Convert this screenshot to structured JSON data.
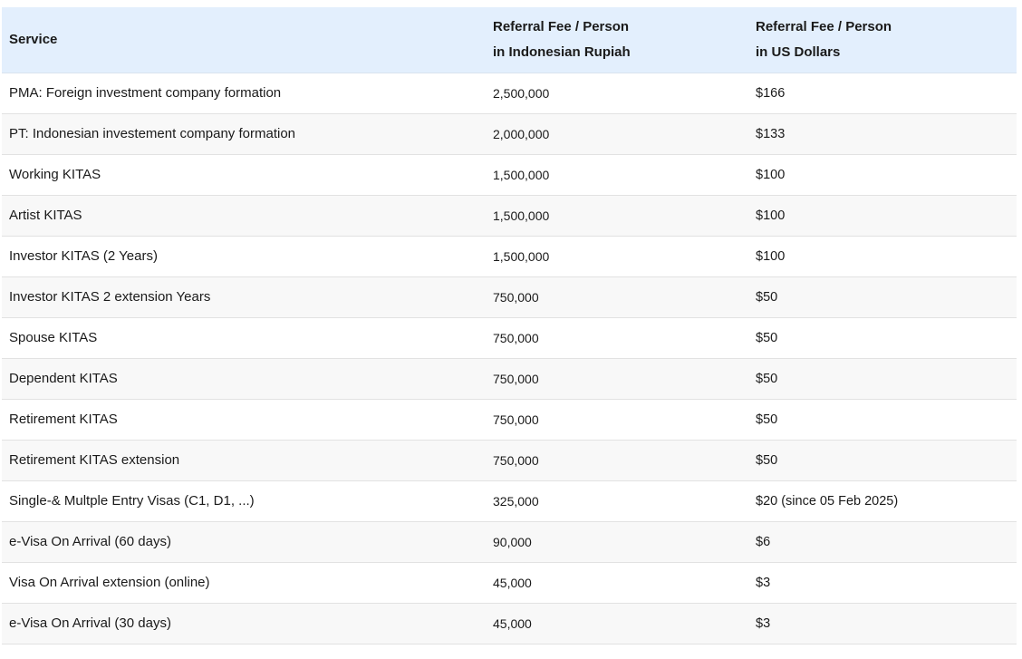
{
  "table": {
    "headers": {
      "service": "Service",
      "idr_line1": "Referral Fee / Person",
      "idr_line2": "in Indonesian Rupiah",
      "usd_line1": "Referral Fee / Person",
      "usd_line2": "in US Dollars"
    },
    "rows": [
      {
        "service": "PMA: Foreign investment company formation",
        "idr": "2,500,000",
        "usd": "$166"
      },
      {
        "service": "PT: Indonesian investement company formation",
        "idr": "2,000,000",
        "usd": "$133"
      },
      {
        "service": "Working KITAS",
        "idr": "1,500,000",
        "usd": "$100"
      },
      {
        "service": "Artist KITAS",
        "idr": "1,500,000",
        "usd": "$100"
      },
      {
        "service": "Investor KITAS (2 Years)",
        "idr": "1,500,000",
        "usd": "$100"
      },
      {
        "service": "Investor KITAS 2 extension Years",
        "idr": "750,000",
        "usd": "$50"
      },
      {
        "service": "Spouse KITAS",
        "idr": "750,000",
        "usd": "$50"
      },
      {
        "service": "Dependent KITAS",
        "idr": "750,000",
        "usd": "$50"
      },
      {
        "service": "Retirement KITAS",
        "idr": "750,000",
        "usd": "$50"
      },
      {
        "service": "Retirement KITAS extension",
        "idr": "750,000",
        "usd": "$50"
      },
      {
        "service": "Single-& Multple Entry Visas (C1, D1, ...)",
        "idr": "325,000",
        "usd": "$20 (since 05 Feb 2025)"
      },
      {
        "service": "e-Visa On Arrival (60 days)",
        "idr": "90,000",
        "usd": "$6"
      },
      {
        "service": "Visa On Arrival extension (online)",
        "idr": "45,000",
        "usd": "$3"
      },
      {
        "service": "e-Visa On Arrival (30 days)",
        "idr": "45,000",
        "usd": "$3"
      }
    ]
  }
}
